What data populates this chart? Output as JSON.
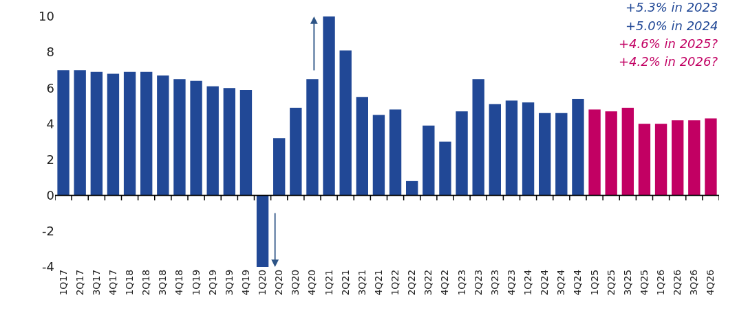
{
  "chart_data": {
    "type": "bar",
    "categories": [
      "1Q17",
      "2Q17",
      "3Q17",
      "4Q17",
      "1Q18",
      "2Q18",
      "3Q18",
      "4Q18",
      "1Q19",
      "2Q19",
      "3Q19",
      "4Q19",
      "1Q20",
      "2Q20",
      "3Q20",
      "4Q20",
      "1Q21",
      "2Q21",
      "3Q21",
      "4Q21",
      "1Q22",
      "2Q22",
      "3Q22",
      "4Q22",
      "1Q23",
      "2Q23",
      "3Q23",
      "4Q23",
      "1Q24",
      "2Q24",
      "3Q24",
      "4Q24",
      "1Q25",
      "2Q25",
      "3Q25",
      "4Q25",
      "1Q26",
      "2Q26",
      "3Q26",
      "4Q26"
    ],
    "values": [
      7.0,
      7.0,
      6.9,
      6.8,
      6.9,
      6.9,
      6.7,
      6.5,
      6.4,
      6.1,
      6.0,
      5.9,
      -4,
      3.2,
      4.9,
      6.5,
      10,
      8.1,
      5.5,
      4.5,
      4.8,
      0.8,
      3.9,
      3.0,
      4.7,
      6.5,
      5.1,
      5.3,
      5.2,
      4.6,
      4.6,
      5.4,
      4.8,
      4.7,
      4.9,
      4.0,
      4.0,
      4.2,
      4.2,
      4.3
    ],
    "colors": [
      "#214896",
      "#214896",
      "#214896",
      "#214896",
      "#214896",
      "#214896",
      "#214896",
      "#214896",
      "#214896",
      "#214896",
      "#214896",
      "#214896",
      "#214896",
      "#214896",
      "#214896",
      "#214896",
      "#214896",
      "#214896",
      "#214896",
      "#214896",
      "#214896",
      "#214896",
      "#214896",
      "#214896",
      "#214896",
      "#214896",
      "#214896",
      "#214896",
      "#214896",
      "#214896",
      "#214896",
      "#214896",
      "#c20063",
      "#c20063",
      "#c20063",
      "#c20063",
      "#c20063",
      "#c20063",
      "#c20063",
      "#c20063"
    ],
    "ylim": [
      -4,
      10
    ],
    "yticks": [
      -4,
      -2,
      0,
      2,
      4,
      6,
      8,
      10
    ],
    "annotations": [
      "+5.3% in 2023",
      "+5.0% in 2024",
      "+4.6% in 2025?",
      "+4.2% in 2026?"
    ],
    "data_labels": false
  }
}
